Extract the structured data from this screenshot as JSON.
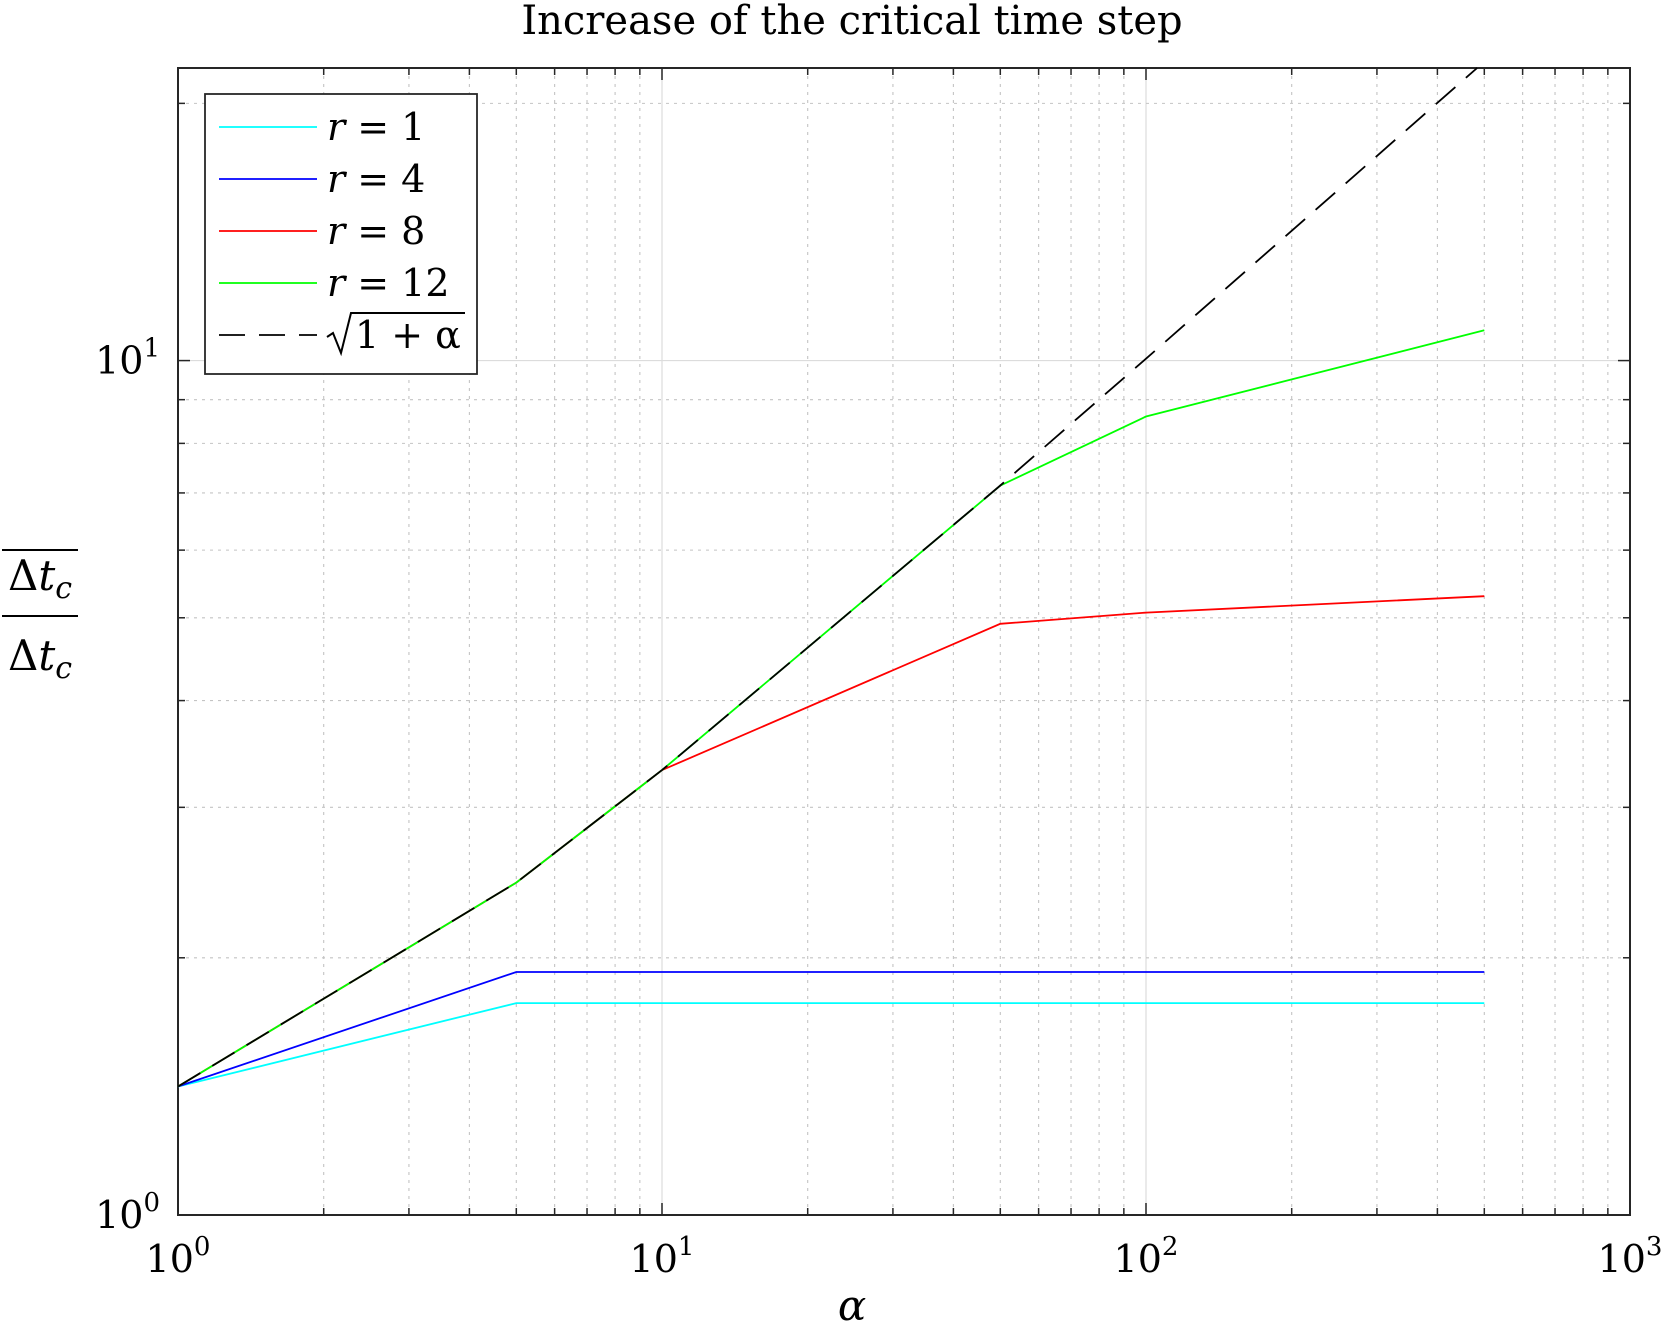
{
  "chart_data": {
    "type": "line",
    "title": "Increase of the critical time step",
    "xlabel": "α",
    "ylabel": {
      "numerator": "Δt",
      "denominator": "Δt",
      "subscript": "c"
    },
    "xscale": "log",
    "yscale": "log",
    "xlim": [
      1,
      1000
    ],
    "ylim": [
      1,
      22
    ],
    "grid": true,
    "minor_grid": true,
    "legend_position": "top-left",
    "x_ticks": [
      {
        "value": 1,
        "base": "10",
        "exp": "0"
      },
      {
        "value": 10,
        "base": "10",
        "exp": "1"
      },
      {
        "value": 100,
        "base": "10",
        "exp": "2"
      },
      {
        "value": 1000,
        "base": "10",
        "exp": "3"
      }
    ],
    "y_ticks": [
      {
        "value": 1,
        "base": "10",
        "exp": "0"
      },
      {
        "value": 10,
        "base": "10",
        "exp": "1"
      }
    ],
    "series": [
      {
        "name": "r = 1",
        "var": "r",
        "rhs": "1",
        "color": "#00ffff",
        "dash": "solid",
        "x": [
          1,
          5,
          10,
          50,
          100,
          500
        ],
        "y": [
          1.414,
          1.77,
          1.77,
          1.77,
          1.77,
          1.77
        ]
      },
      {
        "name": "r = 4",
        "var": "r",
        "rhs": "4",
        "color": "#0000ff",
        "dash": "solid",
        "x": [
          1,
          5,
          10,
          50,
          100,
          500
        ],
        "y": [
          1.414,
          1.925,
          1.925,
          1.925,
          1.925,
          1.925
        ]
      },
      {
        "name": "r = 8",
        "var": "r",
        "rhs": "8",
        "color": "#ff0000",
        "dash": "solid",
        "x": [
          1,
          5,
          10,
          50,
          100,
          500
        ],
        "y": [
          1.414,
          2.449,
          3.317,
          4.92,
          5.07,
          5.3
        ]
      },
      {
        "name": "r = 12",
        "var": "r",
        "rhs": "12",
        "color": "#00ff00",
        "dash": "solid",
        "x": [
          1,
          5,
          10,
          50,
          100,
          500
        ],
        "y": [
          1.414,
          2.449,
          3.317,
          7.14,
          8.6,
          10.85
        ]
      },
      {
        "name": "√(1+α)",
        "var": "",
        "rhs": "1 + α",
        "color": "#000000",
        "dash": "dashed",
        "x": [
          1,
          5,
          10,
          50,
          100,
          500
        ],
        "y": [
          1.414,
          2.449,
          3.317,
          7.141,
          10.05,
          22.38
        ]
      }
    ]
  }
}
